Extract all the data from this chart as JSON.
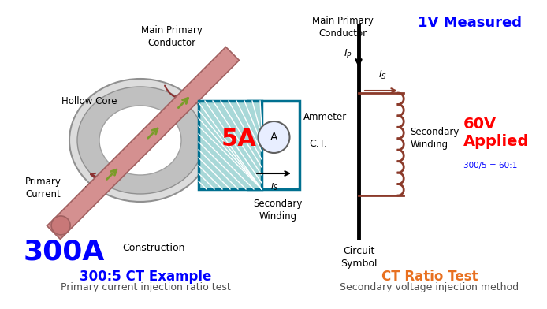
{
  "bg_color": "#ffffff",
  "left_title": "300:5 CT Example",
  "left_subtitle": "Primary current injection ratio test",
  "right_title": "CT Ratio Test",
  "right_subtitle": "Secondary voltage injection method",
  "colors": {
    "blue": "#0000FF",
    "orange": "#E87020",
    "red": "#FF0000",
    "dark_red_brown": "#8B3030",
    "teal": "#007090",
    "black": "#000000",
    "coil_color": "#8B3A2A",
    "olive_green": "#7B9B2A",
    "conductor_pink": "#D49090",
    "conductor_edge": "#A06060",
    "core_fill": "#D8D8D8",
    "core_inner": "#B0B0B0",
    "gray_text": "#505050"
  }
}
